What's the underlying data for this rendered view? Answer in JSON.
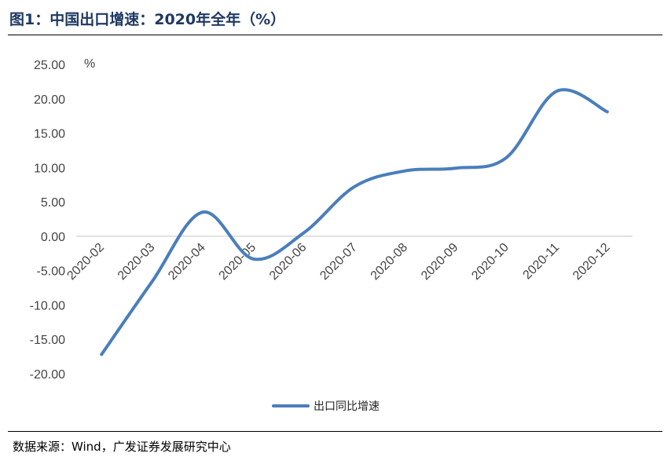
{
  "header": {
    "title": "图1：中国出口增速：2020年全年（%）"
  },
  "footer": {
    "source": "数据来源：Wind，广发证券发展研究中心"
  },
  "chart_data": {
    "type": "line",
    "title": "",
    "unit_label": "%",
    "xlabel": "",
    "ylabel": "",
    "categories": [
      "2020-02",
      "2020-03",
      "2020-04",
      "2020-05",
      "2020-06",
      "2020-07",
      "2020-08",
      "2020-09",
      "2020-10",
      "2020-11",
      "2020-12"
    ],
    "series": [
      {
        "name": "出口同比增速",
        "color": "#4a7ebb",
        "values": [
          -17.2,
          -6.6,
          3.5,
          -3.3,
          0.5,
          7.2,
          9.5,
          9.9,
          11.4,
          21.1,
          18.1
        ]
      }
    ],
    "ylim": [
      -20,
      25
    ],
    "yticks": [
      "-20.00",
      "-15.00",
      "-10.00",
      "-5.00",
      "0.00",
      "5.00",
      "10.00",
      "15.00",
      "20.00",
      "25.00"
    ],
    "grid": false,
    "legend": "bottom"
  }
}
